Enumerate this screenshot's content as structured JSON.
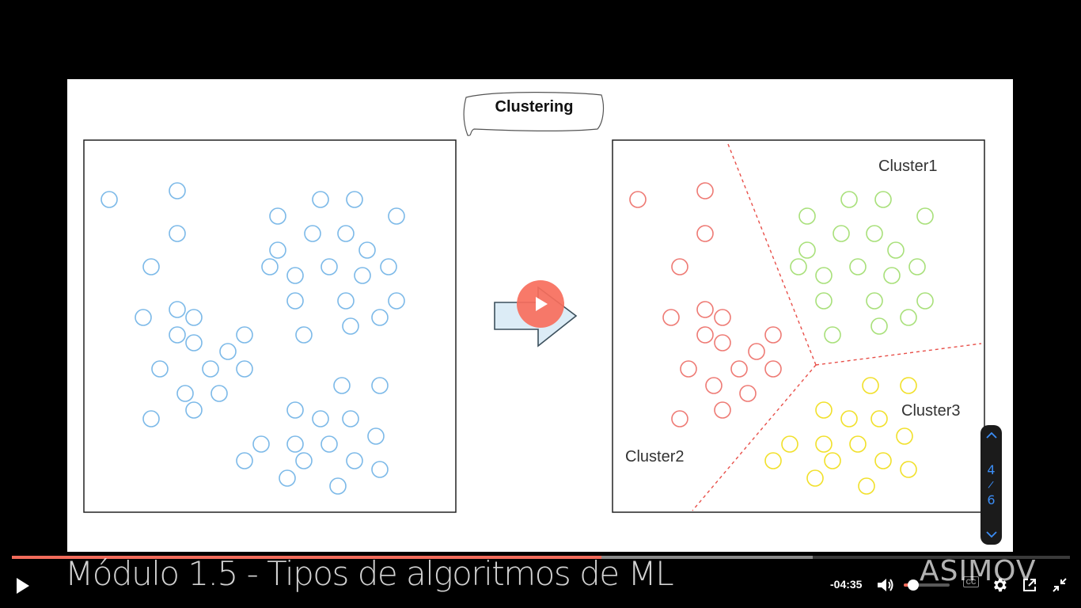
{
  "slide": {
    "title": "Clustering",
    "colors": {
      "unclustered": "#7cb9e8",
      "cluster1": "#a8e07a",
      "cluster2": "#ee7a74",
      "cluster3": "#f1e02a",
      "divider": "#e8504a"
    },
    "cluster_labels": [
      "Cluster1",
      "Cluster2",
      "Cluster3"
    ],
    "arrow_icon": "right-arrow-icon"
  },
  "page_nav": {
    "current": "4",
    "separator": "/",
    "total": "6",
    "up_icon": "chevron-up-icon",
    "down_icon": "chevron-down-icon"
  },
  "player": {
    "play_overlay_icon": "play-icon",
    "progress": {
      "played_fraction": 0.557,
      "buffered_fraction": 0.757
    },
    "watermark_title": "Módulo 1.5 - Tipos de algoritmos de ML",
    "watermark_brand": "ASIMOV",
    "time_remaining": "-04:35",
    "volume_fraction": 0.2,
    "controls": {
      "play_icon": "play-icon",
      "volume_icon": "volume-icon",
      "cc_label": "CC",
      "settings_icon": "gear-icon",
      "popout_icon": "external-link-icon",
      "exit_fullscreen_icon": "exit-fullscreen-icon"
    }
  }
}
